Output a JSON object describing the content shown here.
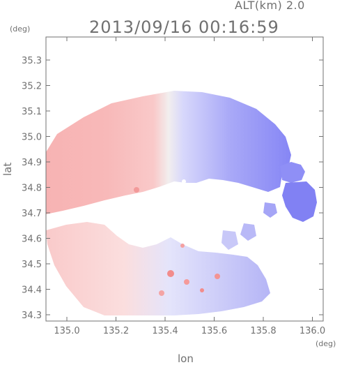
{
  "header": {
    "altitude_label": "ALT(km) 2.0",
    "timestamp": "2013/09/16 00:16:59"
  },
  "axes": {
    "x_unit": "(deg)",
    "y_unit": "(deg)",
    "x_label": "lon",
    "y_label": "lat",
    "x_ticks": [
      "135.0",
      "135.2",
      "135.4",
      "135.6",
      "135.8",
      "136.0"
    ],
    "y_ticks": [
      "34.3",
      "34.4",
      "34.5",
      "34.6",
      "34.7",
      "34.8",
      "34.9",
      "35.0",
      "35.1",
      "35.2",
      "35.3"
    ]
  },
  "colors": {
    "negative_velocity": "#7a7aff",
    "positive_velocity": "#ff9a9a",
    "axis": "#707070"
  }
}
